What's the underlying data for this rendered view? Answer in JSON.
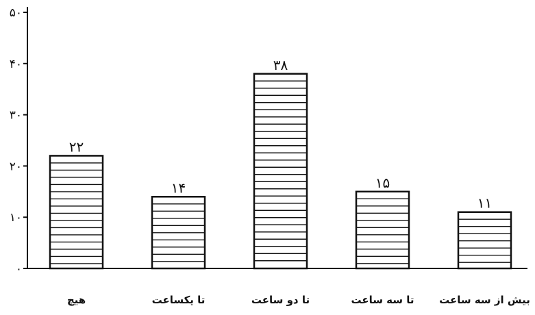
{
  "chart_data": {
    "type": "bar",
    "categories": [
      "هیچ",
      "تا یکساعت",
      "تا دو ساعت",
      "تا سه ساعت",
      "بیش از سه ساعت"
    ],
    "values": [
      22,
      14,
      38,
      15,
      11
    ],
    "value_labels": [
      "۲۲",
      "۱۴",
      "۳۸",
      "۱۵",
      "۱۱"
    ],
    "ylim": [
      0,
      50
    ],
    "yticks": [
      0,
      10,
      20,
      30,
      40,
      50
    ],
    "ytick_labels": [
      "۰",
      "۱۰",
      "۲۰",
      "۳۰",
      "۴۰",
      "۵۰"
    ],
    "bar_fill": "horizontal-hatch",
    "grid": false,
    "colors": {
      "bar_line": "#111111",
      "bar_fill": "#ffffff",
      "axis": "#111111"
    }
  }
}
